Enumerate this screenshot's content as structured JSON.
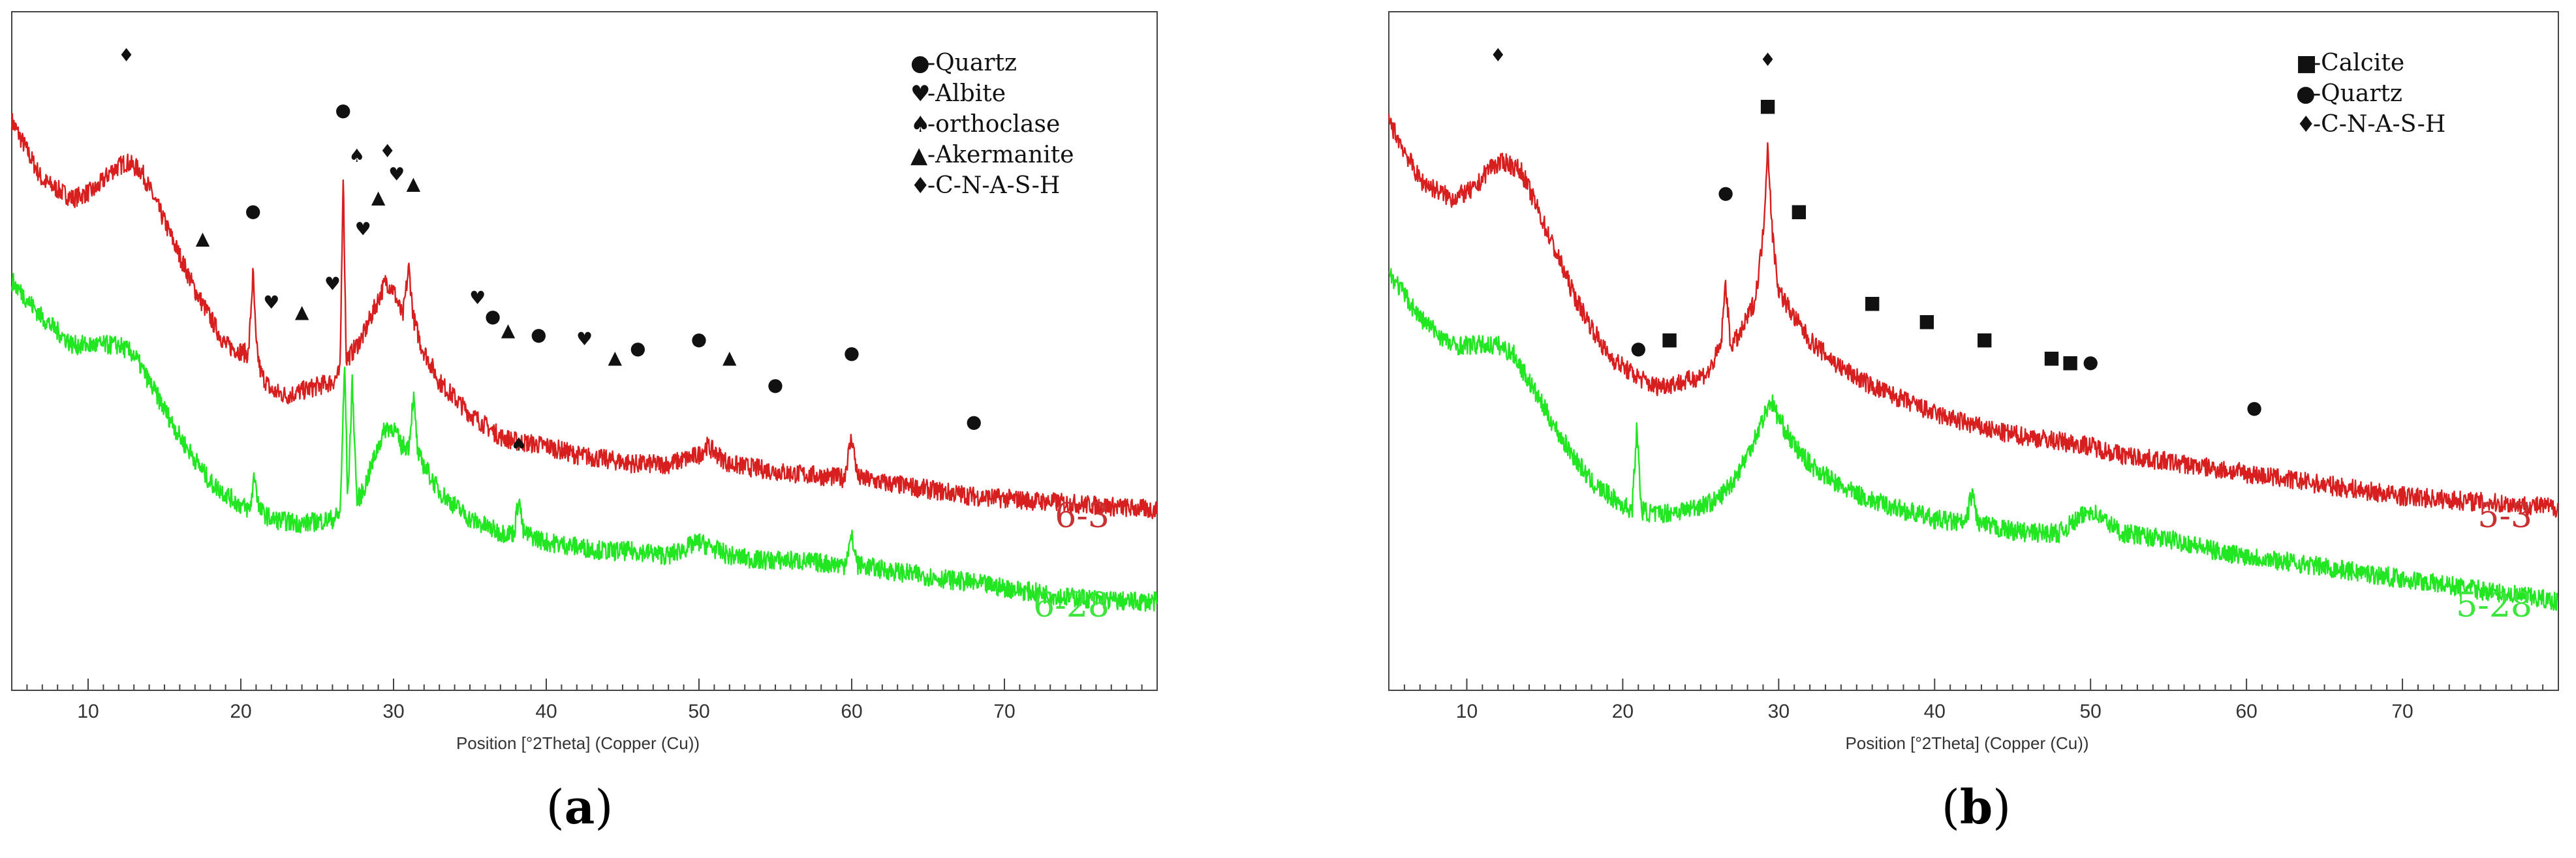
{
  "chart_data": [
    {
      "type": "line",
      "panel_label": "a",
      "xlabel": "Position [°2Theta] (Copper (Cu))",
      "xlim": [
        5,
        80
      ],
      "xticks": [
        10,
        20,
        30,
        40,
        50,
        60,
        70
      ],
      "ylabel": "",
      "grid": false,
      "legend_placement": "top-right",
      "legend": [
        {
          "symbol": "●",
          "label": "-Quartz"
        },
        {
          "symbol": "♥",
          "label": "-Albite"
        },
        {
          "symbol": "♠",
          "label": "-orthoclase"
        },
        {
          "symbol": "▲",
          "label": "-Akermanite"
        },
        {
          "symbol": "♦",
          "label": "-C-N-A-S-H"
        }
      ],
      "series": [
        {
          "name": "6-3",
          "color": "#d81f1f",
          "x": [
            5,
            7,
            9,
            10.5,
            11.5,
            12.5,
            13.5,
            15,
            17,
            19,
            20.5,
            20.8,
            21,
            21.3,
            22,
            23,
            24,
            25,
            26,
            26.5,
            26.7,
            26.9,
            27.2,
            28,
            29,
            29.5,
            30,
            30.6,
            31,
            31.3,
            31.8,
            33,
            35,
            37,
            38,
            40,
            42,
            44,
            46,
            48,
            50,
            50.5,
            52,
            54,
            56,
            59.5,
            60,
            60.4,
            62,
            64,
            66,
            68,
            70,
            72,
            74,
            76,
            78,
            80
          ],
          "y": [
            95,
            82,
            78,
            80,
            84,
            86,
            84,
            73,
            58,
            46,
            44,
            62,
            46,
            40,
            36,
            35,
            36,
            37,
            38,
            40,
            84,
            43,
            44,
            48,
            56,
            60,
            58,
            52,
            63,
            52,
            46,
            38,
            31,
            26,
            25,
            24,
            22,
            21,
            20,
            20,
            22,
            24,
            20,
            19,
            18,
            17,
            26,
            17,
            16,
            15,
            14,
            13,
            12.5,
            12,
            11.5,
            11,
            10.5,
            10
          ]
        },
        {
          "name": "6-28",
          "color": "#22e622",
          "x": [
            5,
            7,
            9,
            10.5,
            12,
            13,
            14,
            16,
            18,
            20,
            20.6,
            20.9,
            21.2,
            22,
            24,
            26,
            26.5,
            26.8,
            27,
            27.3,
            27.6,
            28,
            29,
            29.5,
            30,
            30.5,
            31,
            31.3,
            31.6,
            33,
            35,
            37,
            37.9,
            38.2,
            38.5,
            40,
            42,
            44,
            46,
            48,
            50,
            52,
            54,
            56,
            59.5,
            60,
            60.4,
            62,
            64,
            66,
            68,
            70,
            72,
            74,
            76,
            78,
            80
          ],
          "y": [
            60,
            52,
            46,
            46,
            46,
            44,
            38,
            26,
            16,
            11,
            10,
            18,
            10,
            8,
            7,
            8,
            9,
            42,
            12,
            38,
            12,
            14,
            24,
            28,
            28,
            24,
            24,
            35,
            22,
            14,
            8,
            5,
            5,
            13,
            5,
            3,
            2,
            1,
            1,
            0,
            3,
            0,
            -1,
            -1,
            -2,
            4,
            -2,
            -3,
            -4,
            -5,
            -6,
            -7,
            -8,
            -9,
            -9.5,
            -10,
            -10
          ]
        }
      ],
      "annotations": [
        {
          "text": "6-3",
          "color": "#c83232"
        },
        {
          "text": "6-28",
          "color": "#3ce63c"
        }
      ]
    },
    {
      "type": "line",
      "panel_label": "b",
      "xlabel": "Position [°2Theta] (Copper (Cu))",
      "xlim": [
        5,
        80
      ],
      "xticks": [
        10,
        20,
        30,
        40,
        50,
        60,
        70
      ],
      "ylabel": "",
      "grid": false,
      "legend_placement": "top-right",
      "legend": [
        {
          "symbol": "■",
          "label": "-Calcite"
        },
        {
          "symbol": "●",
          "label": "-Quartz"
        },
        {
          "symbol": "♦",
          "label": "-C-N-A-S-H"
        }
      ],
      "series": [
        {
          "name": "5-3",
          "color": "#d81f1f",
          "x": [
            5,
            7,
            9,
            10.5,
            11.5,
            12.5,
            13.5,
            15,
            17,
            19,
            20.5,
            22,
            24,
            25.5,
            26.3,
            26.6,
            26.9,
            27.5,
            28.5,
            29,
            29.3,
            29.6,
            30,
            31,
            32,
            34,
            36,
            38,
            40,
            42,
            44,
            46,
            48,
            50,
            52,
            54,
            56,
            58,
            60,
            62,
            64,
            66,
            68,
            70,
            72,
            74,
            76,
            78,
            80
          ],
          "y": [
            95,
            82,
            78,
            80,
            85,
            86,
            84,
            72,
            56,
            44,
            40,
            37,
            38,
            40,
            46,
            60,
            46,
            48,
            56,
            70,
            90,
            70,
            58,
            52,
            47,
            41,
            37,
            34,
            31,
            29,
            27,
            26,
            25,
            24,
            22,
            21,
            20,
            19,
            18,
            17,
            16,
            15,
            14,
            13,
            12.5,
            12,
            11.5,
            11,
            10.5
          ]
        },
        {
          "name": "5-28",
          "color": "#22e622",
          "x": [
            5,
            7,
            9,
            10.5,
            12,
            13,
            14,
            16,
            18,
            20,
            20.6,
            20.9,
            21.2,
            22,
            24,
            26,
            27,
            28,
            29,
            29.5,
            30,
            31,
            32,
            34,
            36,
            38,
            40,
            42,
            42.4,
            42.8,
            44,
            46,
            48,
            50,
            52,
            54,
            56,
            58,
            60,
            62,
            64,
            66,
            68,
            70,
            72,
            74,
            76,
            78,
            80
          ],
          "y": [
            62,
            52,
            46,
            46,
            46,
            44,
            38,
            26,
            16,
            11,
            10,
            28,
            10,
            9,
            10,
            12,
            16,
            22,
            30,
            34,
            30,
            24,
            20,
            15,
            12,
            10,
            8,
            7,
            14,
            7,
            6,
            5,
            5,
            10,
            5,
            4,
            3,
            1,
            0,
            -1,
            -2,
            -3,
            -4,
            -5,
            -6,
            -7,
            -8,
            -9,
            -10
          ]
        }
      ],
      "annotations": [
        {
          "text": "5-3",
          "color": "#c83232"
        },
        {
          "text": "5-28",
          "color": "#3ce63c"
        }
      ]
    }
  ]
}
